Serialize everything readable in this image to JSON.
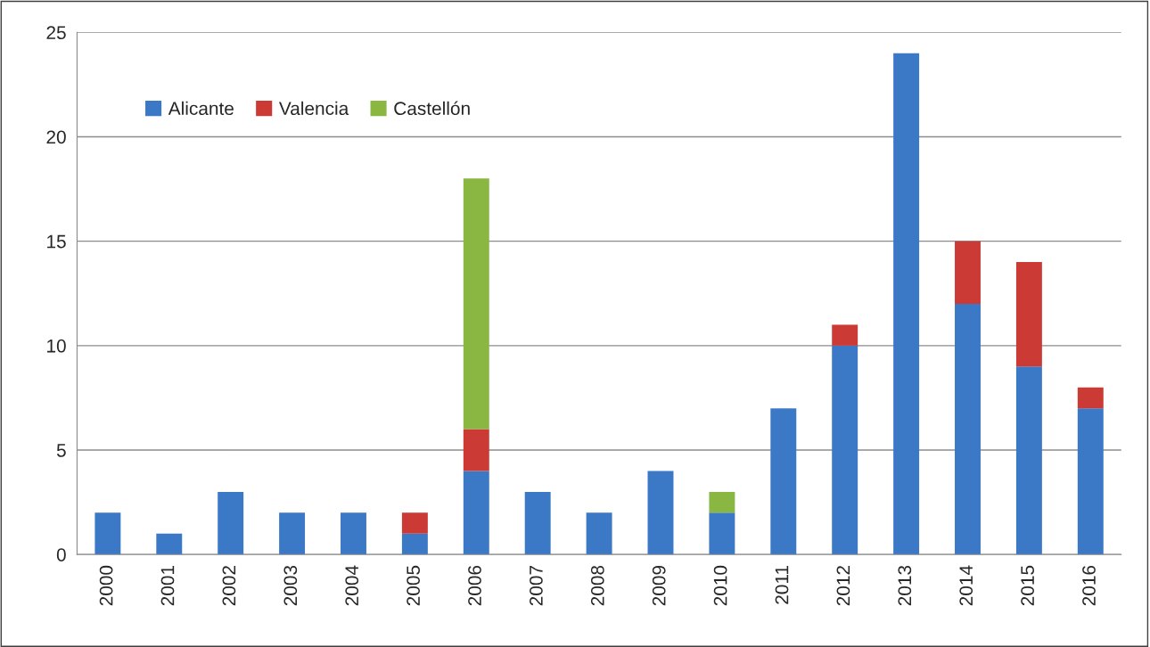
{
  "chart_data": {
    "type": "bar",
    "stacked": true,
    "categories": [
      "2000",
      "2001",
      "2002",
      "2003",
      "2004",
      "2005",
      "2006",
      "2007",
      "2008",
      "2009",
      "2010",
      "2011",
      "2012",
      "2013",
      "2014",
      "2015",
      "2016"
    ],
    "series": [
      {
        "name": "Alicante",
        "color": "#3b78c6",
        "values": [
          2,
          1,
          3,
          2,
          2,
          1,
          4,
          3,
          2,
          4,
          2,
          7,
          10,
          24,
          12,
          9,
          7
        ]
      },
      {
        "name": "Valencia",
        "color": "#cc3a35",
        "values": [
          null,
          null,
          null,
          null,
          null,
          1,
          2,
          null,
          null,
          null,
          null,
          null,
          1,
          null,
          3,
          5,
          1
        ]
      },
      {
        "name": "Castellón",
        "color": "#8ab642",
        "values": [
          null,
          null,
          null,
          null,
          null,
          null,
          12,
          null,
          null,
          null,
          1,
          null,
          null,
          null,
          null,
          null,
          null
        ]
      }
    ],
    "ylim": [
      0,
      25
    ],
    "yticks": [
      0,
      5,
      10,
      15,
      20,
      25
    ],
    "grid": "y",
    "legend": "top left"
  }
}
